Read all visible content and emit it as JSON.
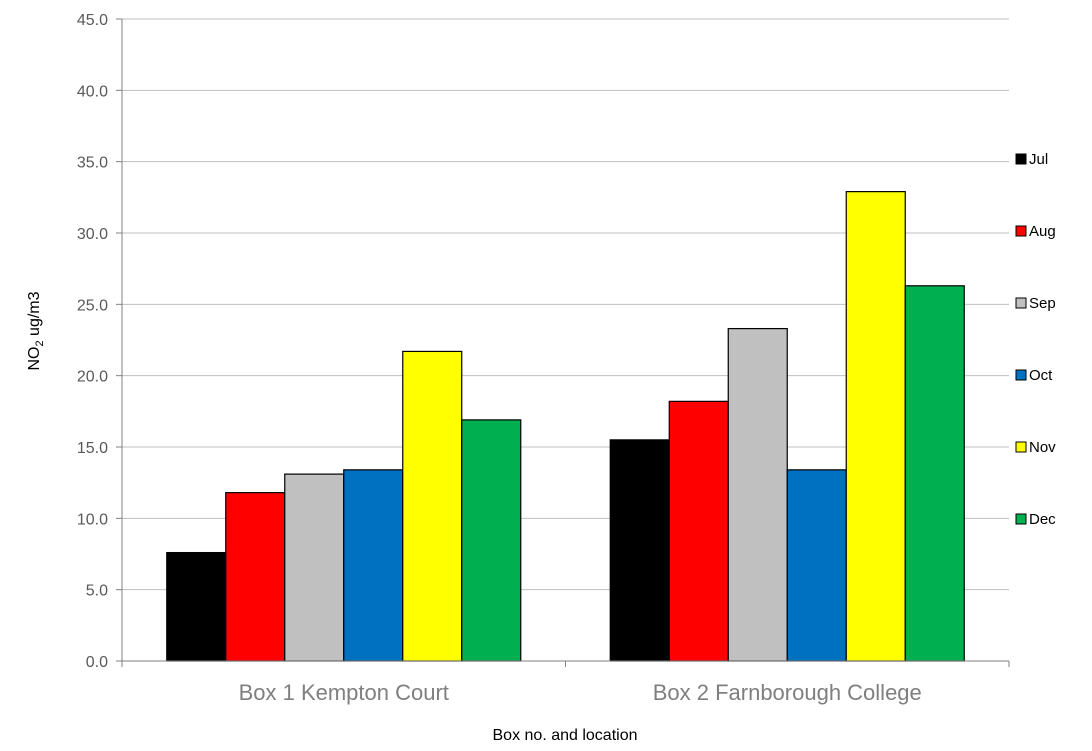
{
  "chart_data": {
    "type": "bar",
    "title": "",
    "xlabel": "Box no. and location",
    "ylabel": {
      "main": "NO",
      "sub": "2",
      "rest": " ug/m3"
    },
    "ylim": [
      0,
      45
    ],
    "ytick_step": 5,
    "ytick_labels": [
      "0.0",
      "5.0",
      "10.0",
      "15.0",
      "20.0",
      "25.0",
      "30.0",
      "35.0",
      "40.0",
      "45.0"
    ],
    "grid": true,
    "legend_position": "right",
    "categories": [
      "Box 1 Kempton Court",
      "Box 2 Farnborough College"
    ],
    "series": [
      {
        "name": "Jul",
        "color": "#000000",
        "values": [
          7.6,
          15.5
        ]
      },
      {
        "name": "Aug",
        "color": "#ff0000",
        "values": [
          11.8,
          18.2
        ]
      },
      {
        "name": "Sep",
        "color": "#c0c0c0",
        "values": [
          13.1,
          23.3
        ]
      },
      {
        "name": "Oct",
        "color": "#0070c0",
        "values": [
          13.4,
          13.4
        ]
      },
      {
        "name": "Nov",
        "color": "#ffff00",
        "values": [
          21.7,
          32.9
        ]
      },
      {
        "name": "Dec",
        "color": "#00b050",
        "values": [
          16.9,
          26.3
        ]
      }
    ]
  }
}
